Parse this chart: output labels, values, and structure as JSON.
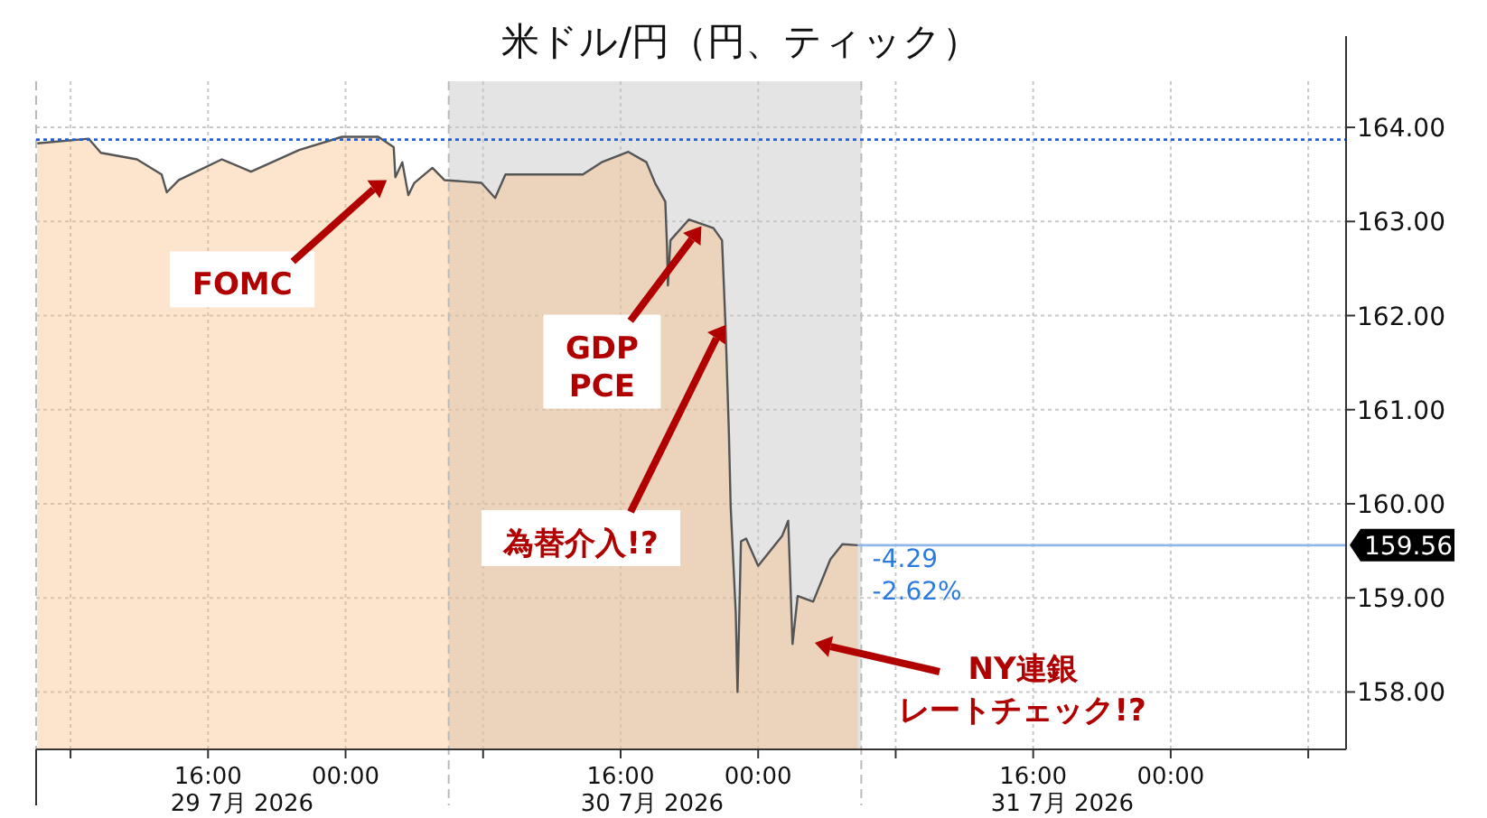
{
  "chart_data": {
    "type": "area",
    "title": "米ドル/円（円、ティック）",
    "x": [
      "2026-07-29T06:04",
      "2026-07-29T09:03",
      "2026-07-29T09:46",
      "2026-07-29T11:52",
      "2026-07-29T13:18",
      "2026-07-29T13:36",
      "2026-07-29T14:18",
      "2026-07-29T16:48",
      "2026-07-29T18:30",
      "2026-07-29T21:18",
      "2026-07-29T23:48",
      "2026-07-30T01:54",
      "2026-07-30T02:48",
      "2026-07-30T02:54",
      "2026-07-30T03:18",
      "2026-07-30T03:39",
      "2026-07-30T04:00",
      "2026-07-30T05:03",
      "2026-07-30T05:45",
      "2026-07-30T07:54",
      "2026-07-30T08:42",
      "2026-07-30T09:18",
      "2026-07-30T11:24",
      "2026-07-30T13:48",
      "2026-07-30T14:54",
      "2026-07-30T16:27",
      "2026-07-30T17:30",
      "2026-07-30T18:00",
      "2026-07-30T18:36",
      "2026-07-30T18:42",
      "2026-07-30T18:45",
      "2026-07-30T18:54",
      "2026-07-30T19:58",
      "2026-07-30T21:24",
      "2026-07-30T21:54",
      "2026-07-30T22:06",
      "2026-07-30T22:18",
      "2026-07-30T22:24",
      "2026-07-30T22:42",
      "2026-07-30T22:48",
      "2026-07-30T23:00",
      "2026-07-30T23:18",
      "2026-07-31T00:00",
      "2026-07-31T01:24",
      "2026-07-31T01:45",
      "2026-07-31T02:00",
      "2026-07-31T02:18",
      "2026-07-31T03:12",
      "2026-07-31T04:12",
      "2026-07-31T04:54",
      "2026-07-31T05:48"
    ],
    "series": [
      {
        "color": "#555555",
        "values": [
          163.83,
          163.88,
          163.73,
          163.66,
          163.5,
          163.31,
          163.44,
          163.66,
          163.53,
          163.76,
          163.9,
          163.9,
          163.79,
          163.47,
          163.63,
          163.28,
          163.41,
          163.57,
          163.44,
          163.41,
          163.25,
          163.5,
          163.5,
          163.5,
          163.63,
          163.74,
          163.63,
          163.41,
          163.21,
          162.73,
          162.32,
          162.8,
          163.02,
          162.93,
          162.8,
          161.9,
          160.75,
          159.98,
          158.83,
          158.0,
          159.6,
          159.63,
          159.34,
          159.66,
          159.82,
          158.51,
          159.02,
          158.96,
          159.41,
          159.57,
          159.56
        ]
      }
    ],
    "xlim": [
      "2026-07-29T06:00",
      "2026-08-01T10:12"
    ],
    "ylim": [
      157.39,
      164.49
    ],
    "xticks": [
      {
        "value": "2026-07-29T08:00",
        "label": null
      },
      {
        "value": "2026-07-29T16:00",
        "label": "16:00"
      },
      {
        "value": "2026-07-30T00:00",
        "label": "00:00"
      },
      {
        "value": "2026-07-30T08:00",
        "label": null
      },
      {
        "value": "2026-07-30T16:00",
        "label": "16:00"
      },
      {
        "value": "2026-07-31T00:00",
        "label": "00:00"
      },
      {
        "value": "2026-07-31T08:00",
        "label": null
      },
      {
        "value": "2026-07-31T16:00",
        "label": "16:00"
      },
      {
        "value": "2026-08-01T00:00",
        "label": "00:00"
      },
      {
        "value": "2026-08-01T08:00",
        "label": null
      }
    ],
    "yticks": [
      {
        "value": 158,
        "label": "158.00"
      },
      {
        "value": 159,
        "label": "159.00"
      },
      {
        "value": 160,
        "label": "160.00"
      },
      {
        "value": 161,
        "label": "161.00"
      },
      {
        "value": 162,
        "label": "162.00"
      },
      {
        "value": 163,
        "label": "163.00"
      },
      {
        "value": 164,
        "label": "164.00"
      }
    ],
    "grid": true,
    "bands": [
      {
        "axis": "x",
        "from": "2026-07-30T06:00",
        "to": "2026-07-31T06:00",
        "color": "#e4e4e4"
      }
    ],
    "ref_lines": [
      {
        "axis": "x",
        "value": "2026-07-29T06:00",
        "color": "#bbbbbb",
        "line_style": "dashed"
      },
      {
        "axis": "x",
        "value": "2026-07-30T06:00",
        "color": "#bbbbbb",
        "line_style": "dashed"
      },
      {
        "axis": "x",
        "value": "2026-07-31T06:00",
        "color": "#bbbbbb",
        "line_style": "dashed"
      },
      {
        "axis": "y",
        "value": 163.87,
        "color": "#2060d0",
        "line_style": "dotted"
      },
      {
        "axis": "y",
        "value": 159.56,
        "label": "159.56",
        "color": "#8fb8e8",
        "line_style": "solid"
      }
    ],
    "annotations": [
      {
        "text": "FOMC",
        "x": "2026-07-30T02:24",
        "y": 163.44
      },
      {
        "text": "GDP\nPCE",
        "x": "2026-07-30T20:42",
        "y": 162.95
      },
      {
        "text": "為替介入!?",
        "x": "2026-07-30T22:06",
        "y": 161.9
      },
      "NY連銀",
      "レートチェック!?",
      {
        "text": "-4.29",
        "x": "2026-07-31T05:48",
        "y": 159.56
      },
      {
        "text": "-2.62%",
        "x": "2026-07-31T05:48",
        "y": 159.56
      },
      "29 7月 2026",
      "30 7月 2026",
      "31 7月 2026"
    ]
  }
}
